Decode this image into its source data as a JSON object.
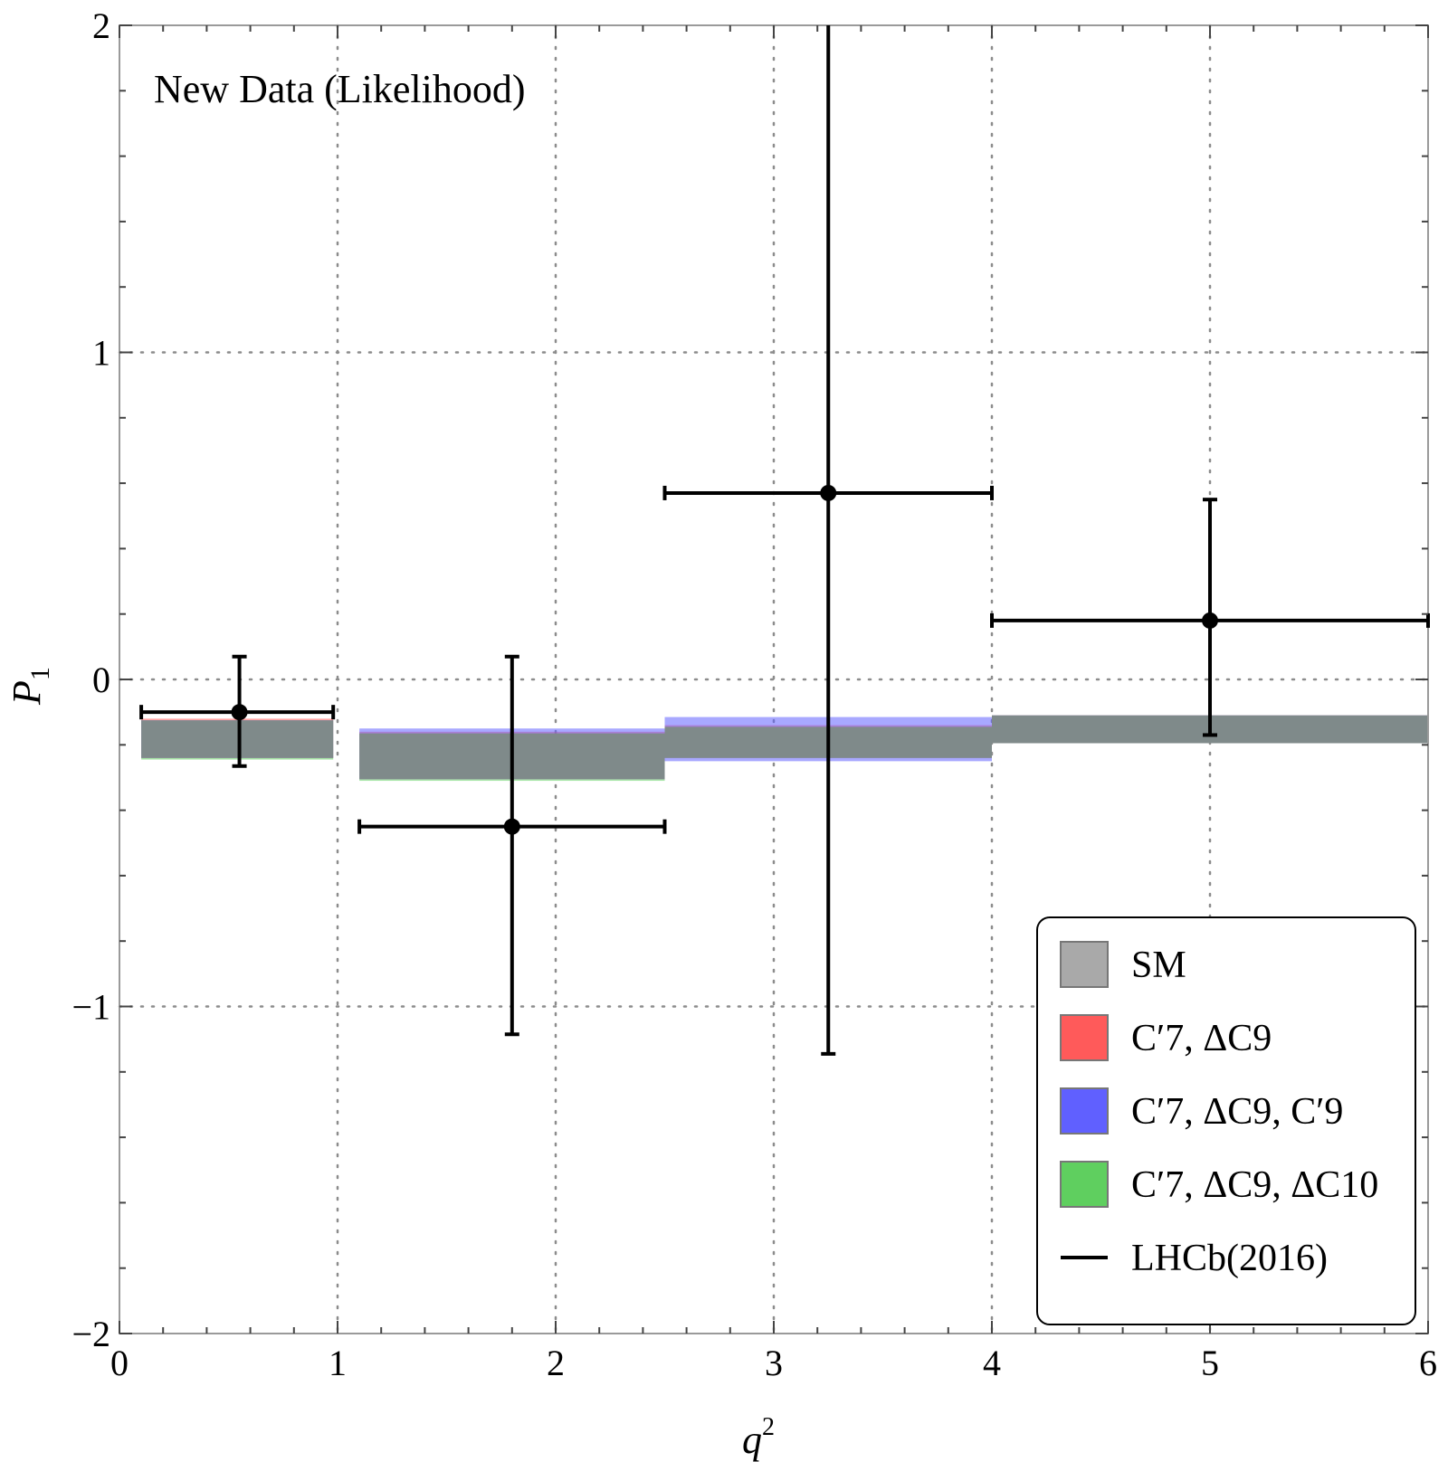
{
  "chart_data": {
    "type": "errorbar-bands",
    "annotation": "New Data (Likelihood)",
    "xlabel": "q",
    "xlabel_sup": "2",
    "ylabel": "P",
    "ylabel_sub": "1",
    "xlim": [
      0,
      6
    ],
    "ylim": [
      -2,
      2
    ],
    "xticks": [
      0,
      1,
      2,
      3,
      4,
      5,
      6
    ],
    "yticks": [
      -2,
      -1,
      0,
      1,
      2
    ],
    "ytick_labels": [
      "−2",
      "−1",
      "0",
      "1",
      "2"
    ],
    "grid": "dotted",
    "bands": [
      {
        "xmin": 0.1,
        "xmax": 0.98,
        "SM": [
          -0.24,
          -0.125
        ],
        "C7_DC9": [
          -0.24,
          -0.12
        ],
        "C7_DC9_C9": [
          -0.24,
          -0.125
        ],
        "C7_DC9_DC10": [
          -0.245,
          -0.125
        ]
      },
      {
        "xmin": 1.1,
        "xmax": 2.5,
        "SM": [
          -0.305,
          -0.165
        ],
        "C7_DC9": [
          -0.305,
          -0.16
        ],
        "C7_DC9_C9": [
          -0.305,
          -0.15
        ],
        "C7_DC9_DC10": [
          -0.31,
          -0.165
        ]
      },
      {
        "xmin": 2.5,
        "xmax": 4.0,
        "SM": [
          -0.24,
          -0.145
        ],
        "C7_DC9": [
          -0.24,
          -0.14
        ],
        "C7_DC9_C9": [
          -0.25,
          -0.115
        ],
        "C7_DC9_DC10": [
          -0.24,
          -0.145
        ]
      },
      {
        "xmin": 4.0,
        "xmax": 6.0,
        "SM": [
          -0.195,
          -0.11
        ],
        "C7_DC9": [
          -0.195,
          -0.11
        ],
        "C7_DC9_C9": [
          -0.195,
          -0.11
        ],
        "C7_DC9_DC10": [
          -0.195,
          -0.11
        ]
      }
    ],
    "lhcb_2016": [
      {
        "x": 0.55,
        "xlo": 0.1,
        "xhi": 0.98,
        "y": -0.1,
        "ylo": -0.265,
        "yhi": 0.07
      },
      {
        "x": 1.8,
        "xlo": 1.1,
        "xhi": 2.5,
        "y": -0.45,
        "ylo": -1.085,
        "yhi": 0.07
      },
      {
        "x": 3.25,
        "xlo": 2.5,
        "xhi": 4.0,
        "y": 0.57,
        "ylo": -1.145,
        "yhi": 2.0
      },
      {
        "x": 5.0,
        "xlo": 4.0,
        "xhi": 6.0,
        "y": 0.18,
        "ylo": -0.17,
        "yhi": 0.55
      }
    ],
    "legend": {
      "position": "bottom-right",
      "entries": [
        {
          "key": "SM",
          "label": "SM",
          "color": "#a9a9a9",
          "kind": "band"
        },
        {
          "key": "C7_DC9",
          "label": "C′7, ΔC9",
          "color": "#ff5a5a",
          "kind": "band"
        },
        {
          "key": "C7_DC9_C9",
          "label": "C′7, ΔC9, C′9",
          "color": "#6060ff",
          "kind": "band"
        },
        {
          "key": "C7_DC9_DC10",
          "label": "C′7, ΔC9, ΔC10",
          "color": "#5fcf5f",
          "kind": "band"
        },
        {
          "key": "LHCb",
          "label": "LHCb(2016)",
          "color": "#000000",
          "kind": "line"
        }
      ]
    },
    "colors": {
      "overlap": "#7f8a8a",
      "grid": "#8c8c8c",
      "frame": "#9a9a9a"
    }
  }
}
